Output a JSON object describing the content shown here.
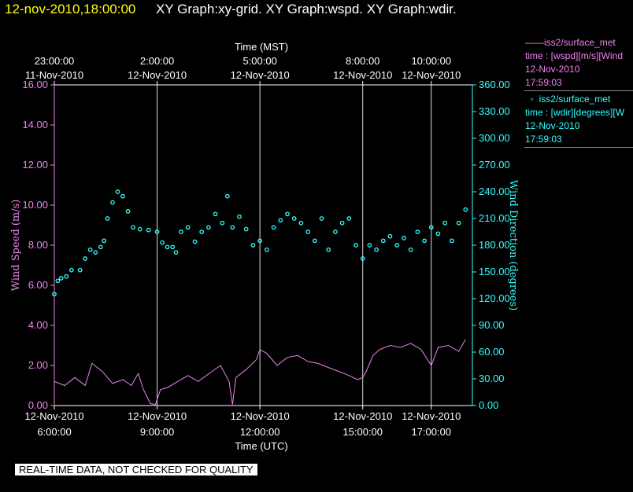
{
  "header": {
    "date_time": "12-nov-2010,18:00:00",
    "titles": "XY Graph:xy-grid.  XY Graph:wspd.  XY Graph:wdir."
  },
  "legend": [
    {
      "symbol": "line",
      "color": "#ee82ee",
      "name": "iss2/surface_met",
      "variable": "time : [wspd][m/s][Wind",
      "date": "12-Nov-2010",
      "time": "17:59:03"
    },
    {
      "symbol": "circle",
      "color": "#33ffff",
      "name": "iss2/surface_met",
      "variable": "time : [wdir][degrees][W",
      "date": "12-Nov-2010",
      "time": "17:59:03"
    }
  ],
  "notice": "REAL-TIME DATA, NOT CHECKED FOR QUALITY",
  "chart_data": {
    "type": "line",
    "xlabel": "Time (UTC)",
    "top_xlabel": "Time (MST)",
    "ylabel": "Wind Speed (m/s)",
    "y2label": "Wind Direction (degrees)",
    "xlim_hours_utc": [
      6.0,
      18.2
    ],
    "ylim": [
      0,
      16
    ],
    "y2lim": [
      0,
      360
    ],
    "grid": "vertical",
    "legend_position": "right",
    "x_ticks": [
      {
        "hour": 6,
        "date": "12-Nov-2010",
        "time": "6:00:00"
      },
      {
        "hour": 9,
        "date": "12-Nov-2010",
        "time": "9:00:00"
      },
      {
        "hour": 12,
        "date": "12-Nov-2010",
        "time": "12:00:00"
      },
      {
        "hour": 15,
        "date": "12-Nov-2010",
        "time": "15:00:00"
      },
      {
        "hour": 17,
        "date": "12-Nov-2010",
        "time": "17:00:00"
      }
    ],
    "x_top_ticks": [
      {
        "hour": 6,
        "time": "23:00:00",
        "date": "11-Nov-2010"
      },
      {
        "hour": 9,
        "time": "2:00:00",
        "date": "12-Nov-2010"
      },
      {
        "hour": 12,
        "time": "5:00:00",
        "date": "12-Nov-2010"
      },
      {
        "hour": 15,
        "time": "8:00:00",
        "date": "12-Nov-2010"
      },
      {
        "hour": 17,
        "time": "10:00:00",
        "date": "12-Nov-2010"
      }
    ],
    "y_ticks": [
      "0.00",
      "2.00",
      "4.00",
      "6.00",
      "8.00",
      "10.00",
      "12.00",
      "14.00",
      "16.00"
    ],
    "y2_ticks": [
      "0.00",
      "30.00",
      "60.00",
      "90.00",
      "120.00",
      "150.00",
      "180.00",
      "210.00",
      "240.00",
      "270.00",
      "300.00",
      "330.00",
      "360.00"
    ],
    "series": [
      {
        "name": "iss2/surface_met",
        "variable": "wspd",
        "axis": "left",
        "color": "#ee82ee",
        "marker": "line",
        "points": [
          [
            6.0,
            1.2
          ],
          [
            6.3,
            1.0
          ],
          [
            6.6,
            1.4
          ],
          [
            6.9,
            1.0
          ],
          [
            7.1,
            2.1
          ],
          [
            7.4,
            1.7
          ],
          [
            7.7,
            1.1
          ],
          [
            8.0,
            1.3
          ],
          [
            8.25,
            1.0
          ],
          [
            8.45,
            1.6
          ],
          [
            8.6,
            0.8
          ],
          [
            8.8,
            0.1
          ],
          [
            8.95,
            0.05
          ],
          [
            9.1,
            0.8
          ],
          [
            9.3,
            0.9
          ],
          [
            9.6,
            1.2
          ],
          [
            9.9,
            1.5
          ],
          [
            10.2,
            1.2
          ],
          [
            10.6,
            1.7
          ],
          [
            10.85,
            2.0
          ],
          [
            11.1,
            1.2
          ],
          [
            11.2,
            0.05
          ],
          [
            11.3,
            1.4
          ],
          [
            11.6,
            1.8
          ],
          [
            11.9,
            2.3
          ],
          [
            12.0,
            2.8
          ],
          [
            12.2,
            2.6
          ],
          [
            12.5,
            2.0
          ],
          [
            12.8,
            2.4
          ],
          [
            13.1,
            2.5
          ],
          [
            13.4,
            2.2
          ],
          [
            13.7,
            2.1
          ],
          [
            14.0,
            1.9
          ],
          [
            14.3,
            1.7
          ],
          [
            14.6,
            1.5
          ],
          [
            14.85,
            1.3
          ],
          [
            15.0,
            1.4
          ],
          [
            15.1,
            1.7
          ],
          [
            15.3,
            2.5
          ],
          [
            15.5,
            2.8
          ],
          [
            15.8,
            3.0
          ],
          [
            16.1,
            2.9
          ],
          [
            16.4,
            3.1
          ],
          [
            16.7,
            2.8
          ],
          [
            17.0,
            2.0
          ],
          [
            17.2,
            2.9
          ],
          [
            17.5,
            3.0
          ],
          [
            17.8,
            2.7
          ],
          [
            18.0,
            3.3
          ]
        ]
      },
      {
        "name": "iss2/surface_met",
        "variable": "wdir",
        "axis": "right",
        "color": "#33ffff",
        "marker": "circle",
        "points": [
          [
            6.0,
            125
          ],
          [
            6.1,
            140
          ],
          [
            6.2,
            143
          ],
          [
            6.35,
            145
          ],
          [
            6.5,
            152
          ],
          [
            6.75,
            152
          ],
          [
            6.9,
            165
          ],
          [
            7.05,
            175
          ],
          [
            7.2,
            172
          ],
          [
            7.35,
            178
          ],
          [
            7.45,
            185
          ],
          [
            7.55,
            210
          ],
          [
            7.7,
            228
          ],
          [
            7.85,
            240
          ],
          [
            8.0,
            235
          ],
          [
            8.15,
            218
          ],
          [
            8.3,
            200
          ],
          [
            8.5,
            198
          ],
          [
            8.75,
            197
          ],
          [
            9.0,
            195
          ],
          [
            9.15,
            183
          ],
          [
            9.3,
            178
          ],
          [
            9.45,
            178
          ],
          [
            9.55,
            172
          ],
          [
            9.7,
            195
          ],
          [
            9.9,
            200
          ],
          [
            10.1,
            184
          ],
          [
            10.3,
            195
          ],
          [
            10.5,
            200
          ],
          [
            10.7,
            215
          ],
          [
            10.9,
            205
          ],
          [
            11.05,
            235
          ],
          [
            11.2,
            200
          ],
          [
            11.4,
            212
          ],
          [
            11.6,
            198
          ],
          [
            11.8,
            180
          ],
          [
            12.0,
            185
          ],
          [
            12.2,
            175
          ],
          [
            12.4,
            200
          ],
          [
            12.6,
            208
          ],
          [
            12.8,
            215
          ],
          [
            13.0,
            210
          ],
          [
            13.2,
            205
          ],
          [
            13.4,
            195
          ],
          [
            13.6,
            185
          ],
          [
            13.8,
            210
          ],
          [
            14.0,
            175
          ],
          [
            14.2,
            195
          ],
          [
            14.4,
            205
          ],
          [
            14.6,
            210
          ],
          [
            14.8,
            180
          ],
          [
            15.0,
            165
          ],
          [
            15.2,
            180
          ],
          [
            15.4,
            175
          ],
          [
            15.6,
            185
          ],
          [
            15.8,
            190
          ],
          [
            16.0,
            180
          ],
          [
            16.2,
            188
          ],
          [
            16.4,
            175
          ],
          [
            16.6,
            195
          ],
          [
            16.8,
            185
          ],
          [
            17.0,
            200
          ],
          [
            17.2,
            193
          ],
          [
            17.4,
            205
          ],
          [
            17.6,
            185
          ],
          [
            17.8,
            205
          ],
          [
            18.0,
            220
          ]
        ]
      }
    ]
  }
}
